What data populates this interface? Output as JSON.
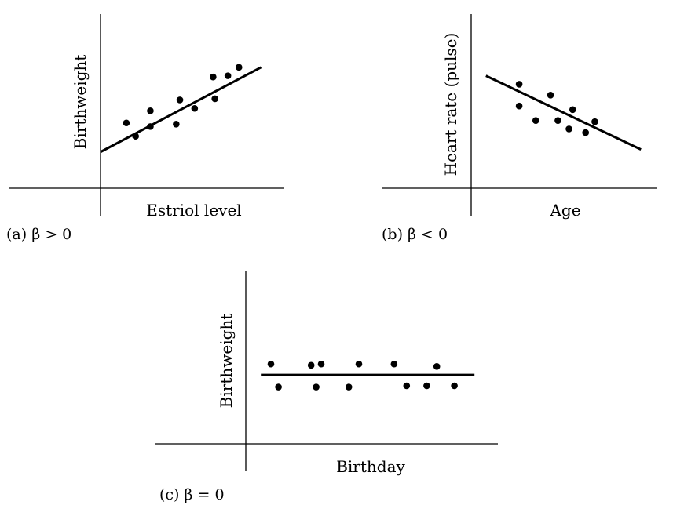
{
  "chart_data": [
    {
      "type": "scatter",
      "caption": "(a) β > 0",
      "xlabel": "Estriol level",
      "ylabel": "Birthweight",
      "points": [
        [
          0.14,
          0.54
        ],
        [
          0.19,
          0.43
        ],
        [
          0.27,
          0.51
        ],
        [
          0.27,
          0.64
        ],
        [
          0.41,
          0.53
        ],
        [
          0.43,
          0.73
        ],
        [
          0.51,
          0.66
        ],
        [
          0.62,
          0.74
        ],
        [
          0.61,
          0.92
        ],
        [
          0.69,
          0.93
        ],
        [
          0.75,
          1.0
        ]
      ],
      "fit_line": [
        [
          0.0,
          0.3
        ],
        [
          0.87,
          1.0
        ]
      ],
      "xlim": [
        0,
        1
      ],
      "ylim": [
        0,
        1.2
      ]
    },
    {
      "type": "scatter",
      "caption": "(b) β < 0",
      "xlabel": "Age",
      "ylabel": "Heart rate (pulse)",
      "points": [
        [
          0.26,
          0.86
        ],
        [
          0.26,
          0.68
        ],
        [
          0.35,
          0.56
        ],
        [
          0.43,
          0.77
        ],
        [
          0.47,
          0.56
        ],
        [
          0.55,
          0.65
        ],
        [
          0.53,
          0.49
        ],
        [
          0.62,
          0.46
        ],
        [
          0.67,
          0.55
        ]
      ],
      "fit_line": [
        [
          0.08,
          0.93
        ],
        [
          0.92,
          0.32
        ]
      ],
      "xlim": [
        0,
        1
      ],
      "ylim": [
        0,
        1.2
      ]
    },
    {
      "type": "scatter",
      "caption": "(c) β = 0",
      "xlabel": "Birthday",
      "ylabel": "Birthweight",
      "points": [
        [
          0.1,
          0.66
        ],
        [
          0.13,
          0.47
        ],
        [
          0.26,
          0.65
        ],
        [
          0.28,
          0.47
        ],
        [
          0.3,
          0.66
        ],
        [
          0.41,
          0.47
        ],
        [
          0.45,
          0.66
        ],
        [
          0.59,
          0.66
        ],
        [
          0.64,
          0.48
        ],
        [
          0.72,
          0.48
        ],
        [
          0.76,
          0.64
        ],
        [
          0.83,
          0.48
        ]
      ],
      "fit_line": [
        [
          0.06,
          0.57
        ],
        [
          0.91,
          0.57
        ]
      ],
      "xlim": [
        0,
        1
      ],
      "ylim": [
        0,
        1.2
      ]
    }
  ]
}
